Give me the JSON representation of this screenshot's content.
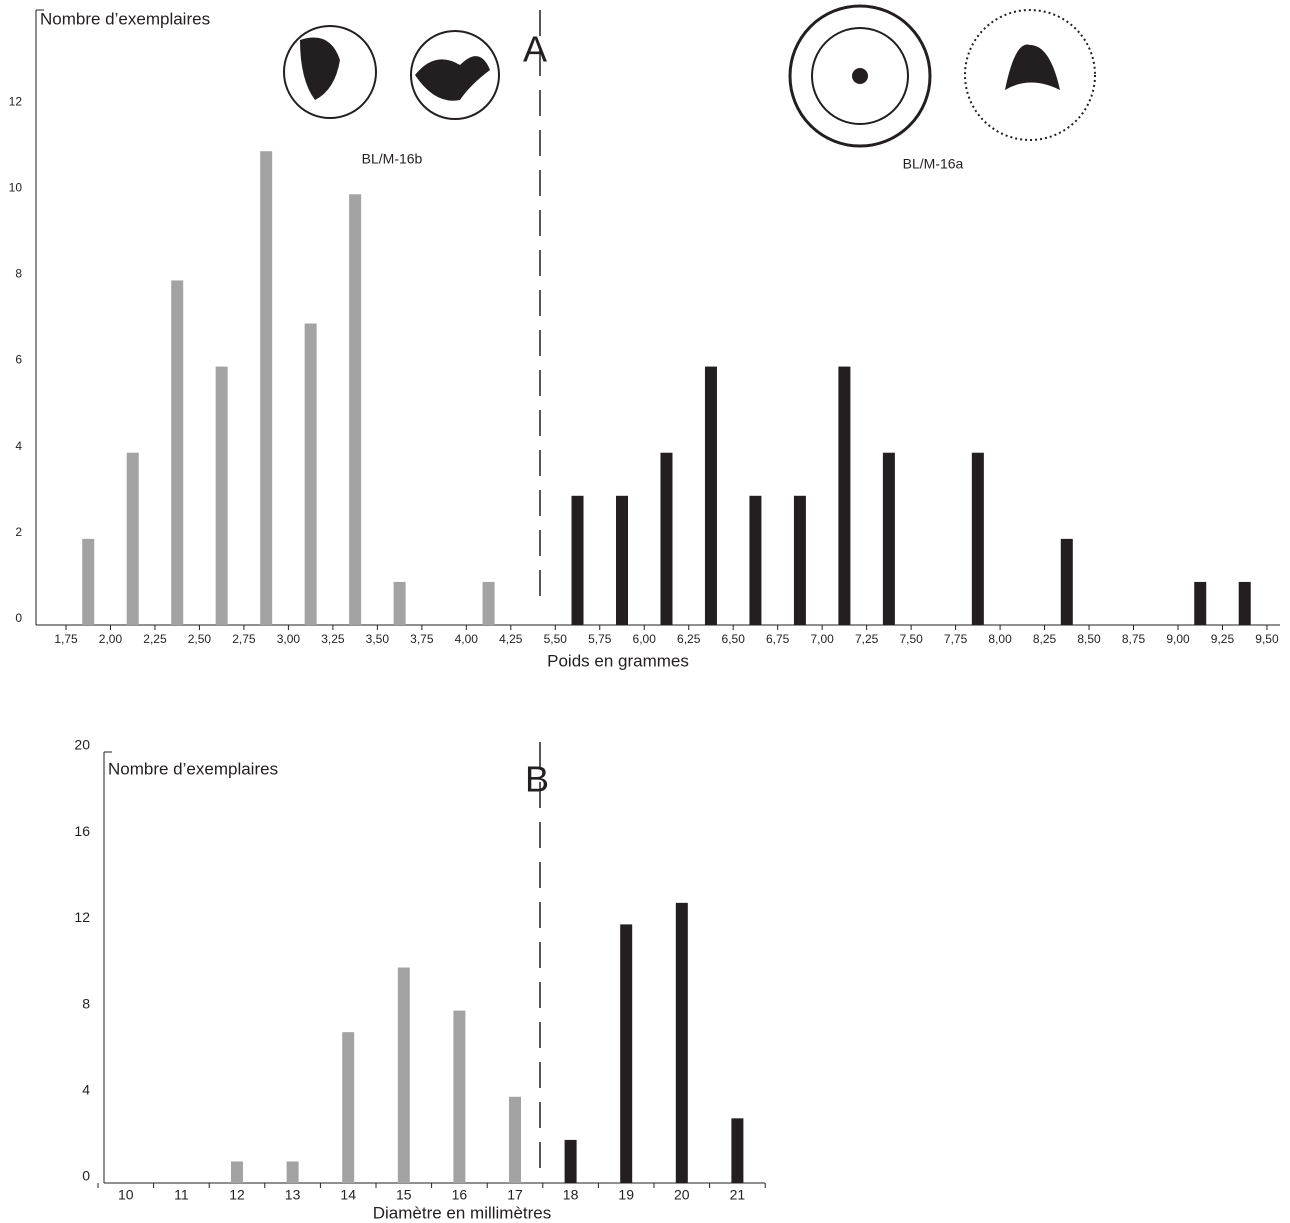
{
  "chart_data": [
    {
      "type": "bar",
      "y_label": "Nombre d’exemplaires",
      "x_label": "Poids en grammes",
      "annotation": "A",
      "categories": [
        null,
        null,
        null,
        null,
        null,
        null,
        null,
        null,
        null,
        null,
        null,
        null,
        null,
        null,
        null,
        null,
        null,
        null,
        null,
        null,
        null,
        null,
        null,
        null,
        null,
        null,
        null
      ],
      "x_edge_labels": [
        "1,75",
        "2,00",
        "2,25",
        "2,50",
        "2,75",
        "3,00",
        "3,25",
        "3,50",
        "3,75",
        "4,00",
        "4,25",
        "5,50",
        "5,75",
        "6,00",
        "6,25",
        "6,50",
        "6,75",
        "7,00",
        "7,25",
        "7,50",
        "7,75",
        "8,00",
        "8,25",
        "8,50",
        "8,75",
        "9,00",
        "9,25",
        "9,50"
      ],
      "series": [
        {
          "name": "BL/M-16b",
          "color": "#a3a3a3",
          "values": [
            2,
            4,
            8,
            6,
            11,
            7,
            10,
            1,
            0,
            1,
            null,
            null,
            null,
            null,
            null,
            null,
            null,
            null,
            null,
            null,
            null,
            null,
            null,
            null,
            null,
            null,
            null
          ]
        },
        {
          "name": "BL/M-16a",
          "color": "#231f20",
          "values": [
            null,
            null,
            null,
            null,
            null,
            null,
            null,
            null,
            null,
            null,
            null,
            3,
            3,
            4,
            6,
            3,
            3,
            6,
            4,
            0,
            4,
            0,
            2,
            0,
            0,
            1,
            1
          ]
        }
      ],
      "ylim": [
        0,
        14
      ],
      "yticks": [
        0,
        2,
        4,
        6,
        8,
        10,
        12
      ]
    },
    {
      "type": "bar",
      "y_label": "Nombre d’exemplaires",
      "x_label": "Diamètre en millimètres",
      "annotation": "B",
      "categories": [
        "10",
        "11",
        "12",
        "13",
        "14",
        "15",
        "16",
        "17",
        "18",
        "19",
        "20",
        "21"
      ],
      "series": [
        {
          "color": "#a3a3a3",
          "values": [
            0,
            0,
            1,
            1,
            7,
            10,
            8,
            4,
            null,
            null,
            null,
            null
          ]
        },
        {
          "color": "#231f20",
          "values": [
            null,
            null,
            null,
            null,
            null,
            null,
            null,
            null,
            2,
            12,
            13,
            3
          ]
        }
      ],
      "ylim": [
        0,
        20
      ],
      "yticks": [
        0,
        4,
        8,
        12,
        16,
        20
      ]
    }
  ]
}
